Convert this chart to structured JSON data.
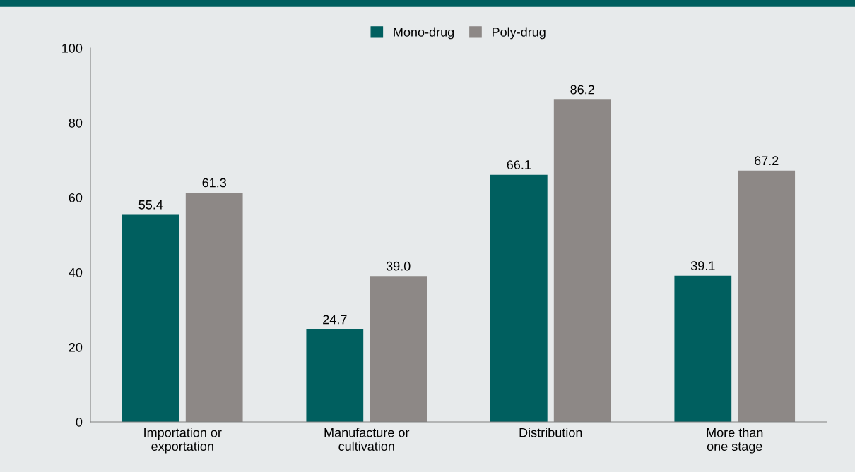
{
  "chart_data": {
    "type": "bar",
    "categories": [
      "Importation or\nexportation",
      "Manufacture or\ncultivation",
      "Distribution",
      "More than\none stage"
    ],
    "series": [
      {
        "name": "Mono-drug",
        "color": "#005f5f",
        "values": [
          55.4,
          24.7,
          66.1,
          39.1
        ],
        "value_labels": [
          "55.4",
          "24.7",
          "66.1",
          "39.1"
        ]
      },
      {
        "name": "Poly-drug",
        "color": "#8d8886",
        "values": [
          61.3,
          39.0,
          86.2,
          67.2
        ],
        "value_labels": [
          "61.3",
          "39.0",
          "86.2",
          "67.2"
        ]
      }
    ],
    "ylim": [
      0,
      100
    ],
    "yticks": [
      0,
      20,
      40,
      60,
      80,
      100
    ],
    "legend": "top",
    "grid": false
  }
}
